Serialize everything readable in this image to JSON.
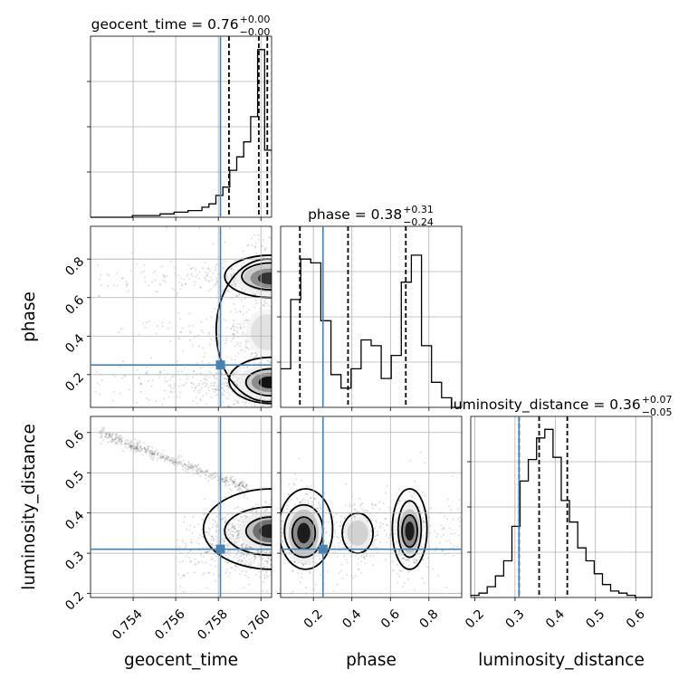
{
  "chart_data": {
    "type": "corner",
    "truth_color": "#4682b4",
    "hist_color": "#000000",
    "parameters": [
      {
        "name": "geocent_time",
        "title": {
          "prefix": "geocent_time = 0.76",
          "sup": "+0.00",
          "sub": "−0.00"
        },
        "range": [
          0.752,
          0.7605
        ],
        "ticks": [
          0.754,
          0.756,
          0.758,
          0.76
        ],
        "tick_labels": [
          "0.754",
          "0.756",
          "0.758",
          "0.760"
        ],
        "truth": 0.7581,
        "quantiles": [
          0.7585,
          0.7599,
          0.7603
        ],
        "hist": [
          0.0,
          0.0,
          0.0,
          0.0,
          0.0,
          0.0,
          0.01,
          0.01,
          0.01,
          0.01,
          0.02,
          0.02,
          0.03,
          0.03,
          0.04,
          0.04,
          0.06,
          0.08,
          0.13,
          0.18,
          0.28,
          0.36,
          0.45,
          0.6,
          1.0,
          0.4
        ],
        "hist_ymax": 1.08
      },
      {
        "name": "phase",
        "title": {
          "prefix": "phase = 0.38",
          "sup": "+0.31",
          "sub": "−0.24"
        },
        "range": [
          0.03,
          0.97
        ],
        "ticks": [
          0.2,
          0.4,
          0.6,
          0.8
        ],
        "tick_labels": [
          "0.2",
          "0.4",
          "0.6",
          "0.8"
        ],
        "truth": 0.25,
        "quantiles": [
          0.13,
          0.38,
          0.68
        ],
        "hist": [
          0.2,
          0.56,
          0.77,
          0.75,
          0.45,
          0.17,
          0.1,
          0.2,
          0.35,
          0.32,
          0.15,
          0.27,
          0.65,
          0.79,
          0.32,
          0.13,
          0.05,
          0.0
        ],
        "hist_ymax": 0.94
      },
      {
        "name": "luminosity_distance",
        "title": {
          "prefix": "luminosity_distance = 0.36",
          "sup": "+0.07",
          "sub": "−0.05"
        },
        "range": [
          0.19,
          0.64
        ],
        "ticks": [
          0.2,
          0.3,
          0.4,
          0.5,
          0.6
        ],
        "tick_labels": [
          "0.2",
          "0.3",
          "0.4",
          "0.5",
          "0.6"
        ],
        "truth": 0.31,
        "quantiles": [
          0.31,
          0.36,
          0.43
        ],
        "hist": [
          0.01,
          0.02,
          0.05,
          0.1,
          0.17,
          0.33,
          0.54,
          0.64,
          0.74,
          0.78,
          0.65,
          0.45,
          0.35,
          0.23,
          0.17,
          0.11,
          0.06,
          0.03,
          0.02,
          0.01,
          0.0,
          0.0
        ],
        "hist_ymax": 0.84
      }
    ],
    "grid": true
  }
}
